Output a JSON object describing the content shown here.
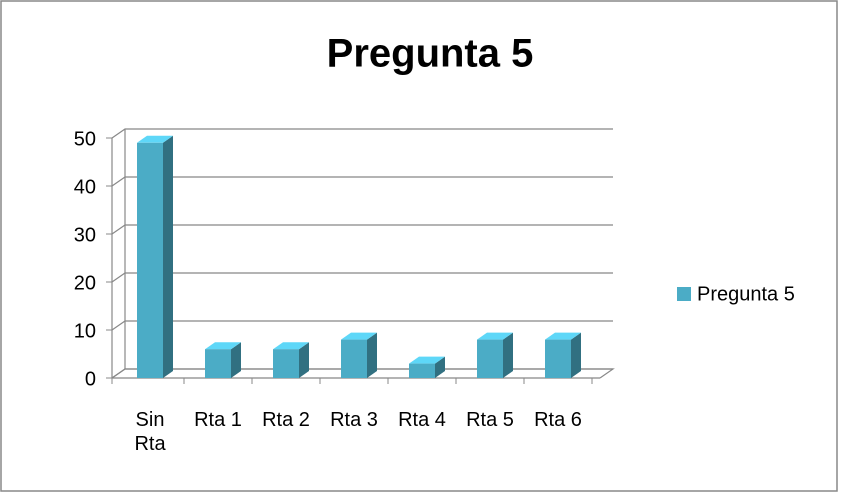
{
  "chart_data": {
    "type": "bar",
    "title": "Pregunta 5",
    "categories": [
      "Sin Rta",
      "Rta 1",
      "Rta 2",
      "Rta 3",
      "Rta 4",
      "Rta 5",
      "Rta 6"
    ],
    "series": [
      {
        "name": "Pregunta 5",
        "color": "#4bacc6",
        "values": [
          49,
          6,
          6,
          8,
          3,
          8,
          8
        ]
      }
    ],
    "ylim": [
      0,
      50
    ],
    "yticks": [
      0,
      10,
      20,
      30,
      40,
      50
    ],
    "grid": true,
    "legend": "right"
  }
}
